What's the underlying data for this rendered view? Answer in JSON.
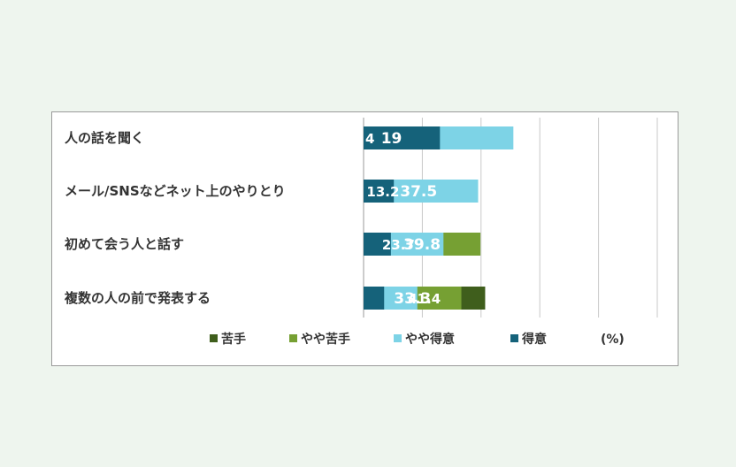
{
  "chart_data": {
    "type": "bar",
    "orientation": "horizontal",
    "stacked": true,
    "categories": [
      "人の話を聞く",
      "メール/SNSなどネット上のやりとり",
      "初めて会う人と話す",
      "複数の人の前で発表する"
    ],
    "series": [
      {
        "name": "苦手",
        "color": "#3f5e1c",
        "values": [
          4,
          13.2,
          23.7,
          41.4
        ]
      },
      {
        "name": "やや苦手",
        "color": "#76a033",
        "values": [
          19,
          37.5,
          39.8,
          33.3
        ]
      },
      {
        "name": "やや得意",
        "color": "#7dd3e6",
        "values": [
          51,
          39.0,
          27.2,
          18.3
        ]
      },
      {
        "name": "得意",
        "color": "#15627a",
        "values": [
          26,
          10.3,
          9.3,
          7.0
        ]
      }
    ],
    "data_labels": [
      [
        "4",
        "19",
        "",
        ""
      ],
      [
        "13.2",
        "37.5",
        "",
        ""
      ],
      [
        "23.7",
        "39.8",
        "",
        ""
      ],
      [
        "41.4",
        "33.3",
        "",
        ""
      ]
    ],
    "xlim": [
      0,
      100
    ],
    "unit_label": "(%)",
    "grid": true,
    "legend_position": "bottom"
  }
}
